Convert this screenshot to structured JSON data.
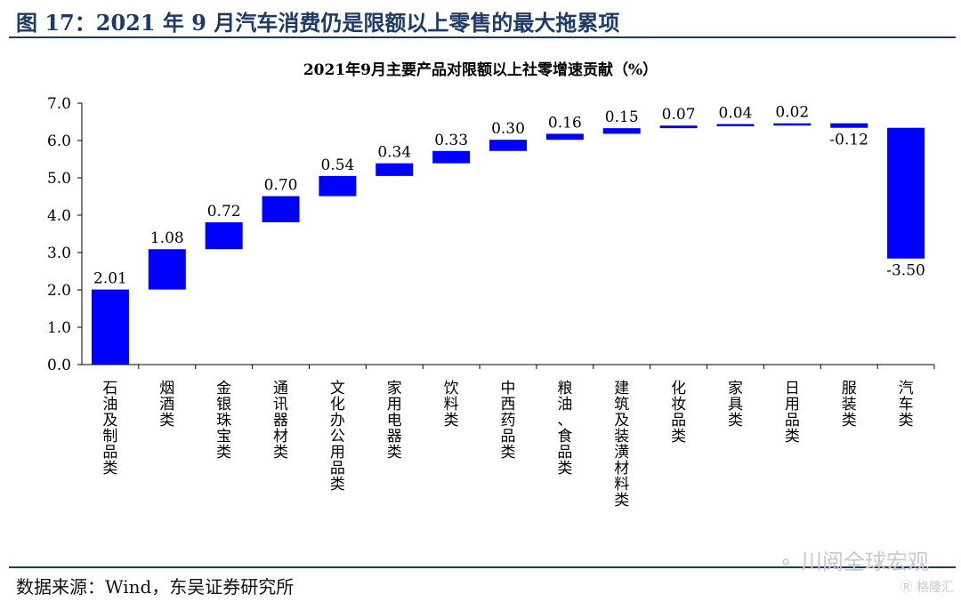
{
  "figure_title": "图 17：2021 年 9 月汽车消费仍是限额以上零售的最大拖累项",
  "source": "数据来源：Wind，东吴证券研究所",
  "watermark": {
    "text": "川阅全球宏观",
    "icon": "wechat-icon",
    "sub": "格隆汇"
  },
  "colors": {
    "bar": "#0000ff",
    "title": "#1f3a66"
  },
  "chart_data": {
    "type": "waterfall",
    "title": "2021年9月主要产品对限额以上社零增速贡献（%）",
    "categories": [
      "石油及制品类",
      "烟酒类",
      "金银珠宝类",
      "通讯器材类",
      "文化办公用品类",
      "家用电器类",
      "饮料类",
      "中西药品类",
      "粮油、食品类",
      "建筑及装潢材料类",
      "化妆品类",
      "家具类",
      "日用品类",
      "服装类",
      "汽车类"
    ],
    "values": [
      2.01,
      1.08,
      0.72,
      0.7,
      0.54,
      0.34,
      0.33,
      0.3,
      0.16,
      0.15,
      0.07,
      0.04,
      0.02,
      -0.12,
      -3.5
    ],
    "value_labels": [
      "2.01",
      "1.08",
      "0.72",
      "0.70",
      "0.54",
      "0.34",
      "0.33",
      "0.30",
      "0.16",
      "0.15",
      "0.07",
      "0.04",
      "0.02",
      "-0.12",
      "-3.50"
    ],
    "ylim": [
      0,
      7
    ],
    "yticks": [
      "0.0",
      "1.0",
      "2.0",
      "3.0",
      "4.0",
      "5.0",
      "6.0",
      "7.0"
    ],
    "xlabel": "",
    "ylabel": "",
    "grid": false,
    "legend": "none"
  }
}
